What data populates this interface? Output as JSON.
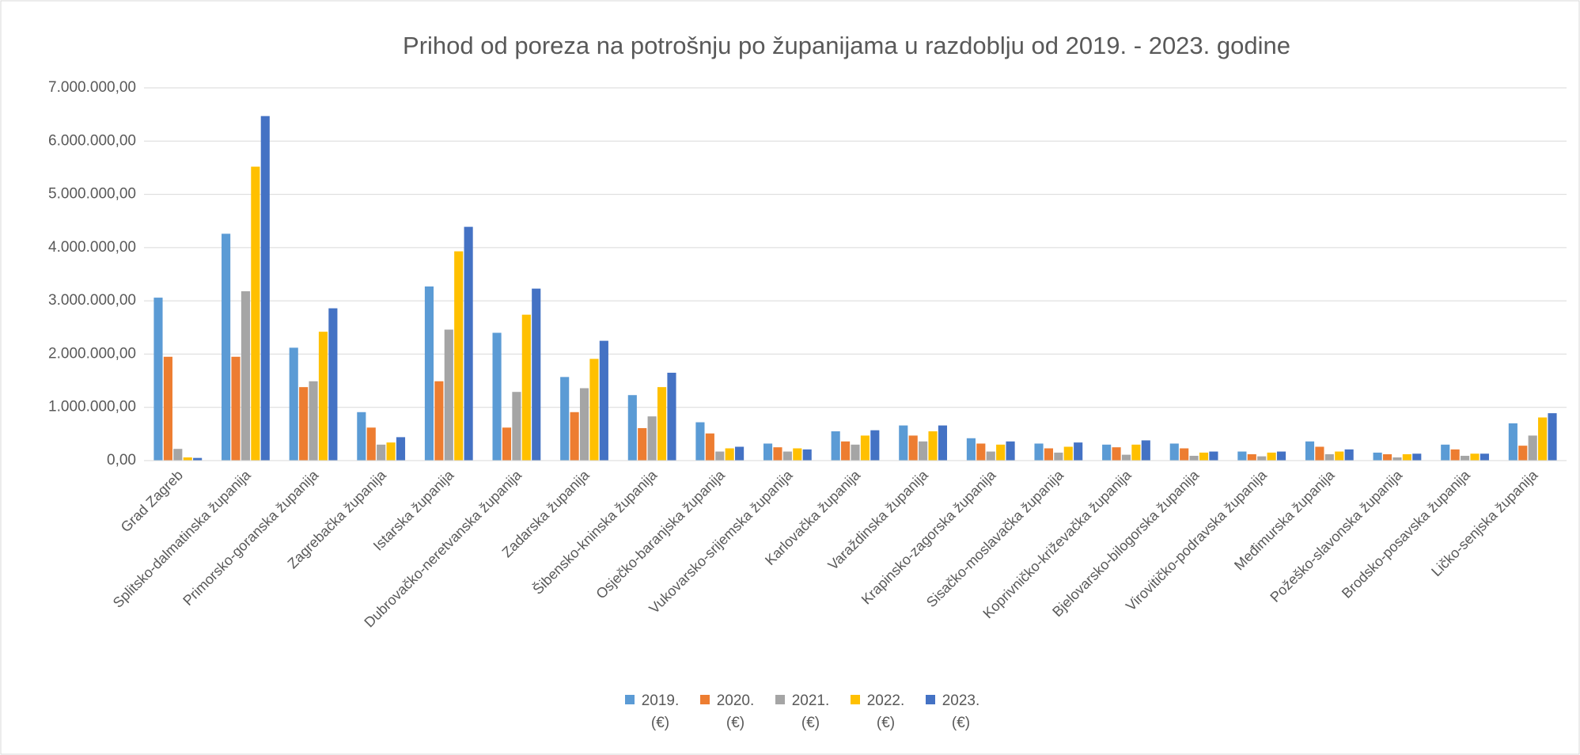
{
  "chart_data": {
    "type": "bar",
    "title": "Prihod od poreza na potrošnju po županijama u razdoblju od  2019. - 2023. godine",
    "categories": [
      "Grad Zagreb",
      "Splitsko-dalmatinska županija",
      "Primorsko-goranska županija",
      "Zagrebačka županija",
      "Istarska županija",
      "Dubrovačko-neretvanska županija",
      "Zadarska županija",
      "Šibensko-kninska županija",
      "Osječko-baranjska županija",
      "Vukovarsko-srijemska županija",
      "Karlovačka županija",
      "Varaždinska županija",
      "Krapinsko-zagorska županija",
      "Sisačko-moslavačka županija",
      "Koprivničko-križevačka županija",
      "Bjelovarsko-bilogorska županija",
      "Virovitičko-podravska županija",
      "Međimurska županija",
      "Požeško-slavonska županija",
      "Brodsko-posavska županija",
      "Ličko-senjska županija"
    ],
    "series": [
      {
        "name": "2019. (€)",
        "color": "#5b9bd5",
        "values": [
          3060000,
          4260000,
          2120000,
          910000,
          3270000,
          2400000,
          1570000,
          1230000,
          720000,
          320000,
          550000,
          660000,
          420000,
          320000,
          300000,
          320000,
          170000,
          360000,
          150000,
          300000,
          700000
        ]
      },
      {
        "name": "2020. (€)",
        "color": "#ed7d31",
        "values": [
          1950000,
          1950000,
          1380000,
          620000,
          1490000,
          620000,
          910000,
          610000,
          510000,
          250000,
          360000,
          470000,
          320000,
          230000,
          250000,
          230000,
          120000,
          260000,
          120000,
          210000,
          280000
        ]
      },
      {
        "name": "2021. (€)",
        "color": "#a5a5a5",
        "values": [
          220000,
          3180000,
          1490000,
          300000,
          2460000,
          1290000,
          1360000,
          830000,
          170000,
          170000,
          300000,
          360000,
          170000,
          150000,
          110000,
          90000,
          80000,
          120000,
          60000,
          90000,
          470000
        ]
      },
      {
        "name": "2022. (€)",
        "color": "#ffc000",
        "values": [
          60000,
          5520000,
          2420000,
          340000,
          3930000,
          2740000,
          1910000,
          1380000,
          230000,
          230000,
          470000,
          550000,
          300000,
          260000,
          300000,
          150000,
          150000,
          170000,
          120000,
          130000,
          810000
        ]
      },
      {
        "name": "2023. (€)",
        "color": "#4472c4",
        "values": [
          50000,
          6470000,
          2860000,
          440000,
          4390000,
          3230000,
          2250000,
          1650000,
          260000,
          210000,
          570000,
          660000,
          360000,
          340000,
          380000,
          170000,
          170000,
          210000,
          130000,
          130000,
          890000
        ]
      }
    ],
    "ylim": [
      0,
      7000000
    ],
    "yticks": [
      {
        "value": 0,
        "label": "0,00"
      },
      {
        "value": 1000000,
        "label": "1.000.000,00"
      },
      {
        "value": 2000000,
        "label": "2.000.000,00"
      },
      {
        "value": 3000000,
        "label": "3.000.000,00"
      },
      {
        "value": 4000000,
        "label": "4.000.000,00"
      },
      {
        "value": 5000000,
        "label": "5.000.000,00"
      },
      {
        "value": 6000000,
        "label": "6.000.000,00"
      },
      {
        "value": 7000000,
        "label": "7.000.000,00"
      }
    ],
    "grid": true,
    "legend": "bottom"
  }
}
